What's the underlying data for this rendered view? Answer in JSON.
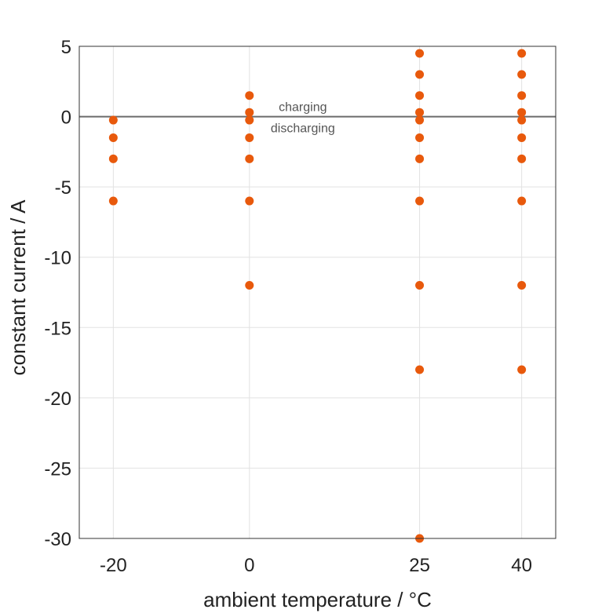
{
  "chart_data": {
    "type": "scatter",
    "xlabel": "ambient temperature / °C",
    "ylabel": "constant current / A",
    "xlim": [
      -25,
      45
    ],
    "ylim": [
      -30,
      5
    ],
    "xticks": [
      -20,
      0,
      25,
      40
    ],
    "xtick_labels": [
      "-20",
      "0",
      "25",
      "40"
    ],
    "yticks": [
      5,
      0,
      -5,
      -10,
      -15,
      -20,
      -25,
      -30
    ],
    "ytick_labels": [
      "5",
      "0",
      "-5",
      "-10",
      "-15",
      "-20",
      "-25",
      "-30"
    ],
    "grid": true,
    "legend": "none",
    "reference_line_y": 0,
    "annotations": [
      {
        "text": "charging",
        "x": 7.5,
        "y": 0.5
      },
      {
        "text": "discharging",
        "x": 7.5,
        "y": -0.5
      }
    ],
    "points": [
      {
        "x": -20,
        "y": -0.25
      },
      {
        "x": -20,
        "y": -1.5
      },
      {
        "x": -20,
        "y": -3
      },
      {
        "x": -20,
        "y": -6
      },
      {
        "x": 0,
        "y": 1.5
      },
      {
        "x": 0,
        "y": 0.3
      },
      {
        "x": 0,
        "y": -0.25
      },
      {
        "x": 0,
        "y": -1.5
      },
      {
        "x": 0,
        "y": -3
      },
      {
        "x": 0,
        "y": -6
      },
      {
        "x": 0,
        "y": -12
      },
      {
        "x": 25,
        "y": 4.5
      },
      {
        "x": 25,
        "y": 3
      },
      {
        "x": 25,
        "y": 1.5
      },
      {
        "x": 25,
        "y": 0.3
      },
      {
        "x": 25,
        "y": -0.25
      },
      {
        "x": 25,
        "y": -1.5
      },
      {
        "x": 25,
        "y": -3
      },
      {
        "x": 25,
        "y": -6
      },
      {
        "x": 25,
        "y": -12
      },
      {
        "x": 25,
        "y": -18
      },
      {
        "x": 25,
        "y": -30
      },
      {
        "x": 40,
        "y": 4.5
      },
      {
        "x": 40,
        "y": 3
      },
      {
        "x": 40,
        "y": 1.5
      },
      {
        "x": 40,
        "y": 0.3
      },
      {
        "x": 40,
        "y": -0.25
      },
      {
        "x": 40,
        "y": -1.5
      },
      {
        "x": 40,
        "y": -3
      },
      {
        "x": 40,
        "y": -6
      },
      {
        "x": 40,
        "y": -12
      },
      {
        "x": 40,
        "y": -18
      }
    ]
  },
  "colors": {
    "marker": "#e8590c",
    "grid": "#e2e2e2",
    "axis": "#333333",
    "zero_line": "#6b6b6b",
    "annotation": "#555555"
  }
}
